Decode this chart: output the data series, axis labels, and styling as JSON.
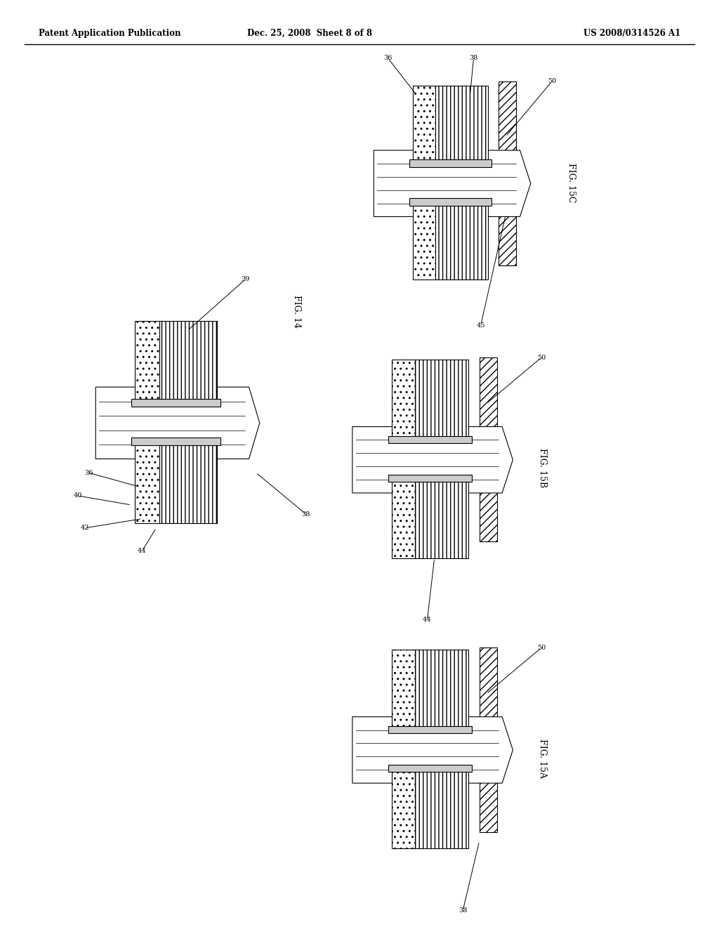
{
  "bg_color": "#ffffff",
  "header_left": "Patent Application Publication",
  "header_center": "Dec. 25, 2008  Sheet 8 of 8",
  "header_right": "US 2008/0314526 A1",
  "fig15C_label": "FIG. 15C",
  "fig15B_label": "FIG. 15B",
  "fig14_label": "FIG. 14",
  "fig15A_label": "FIG. 15A"
}
